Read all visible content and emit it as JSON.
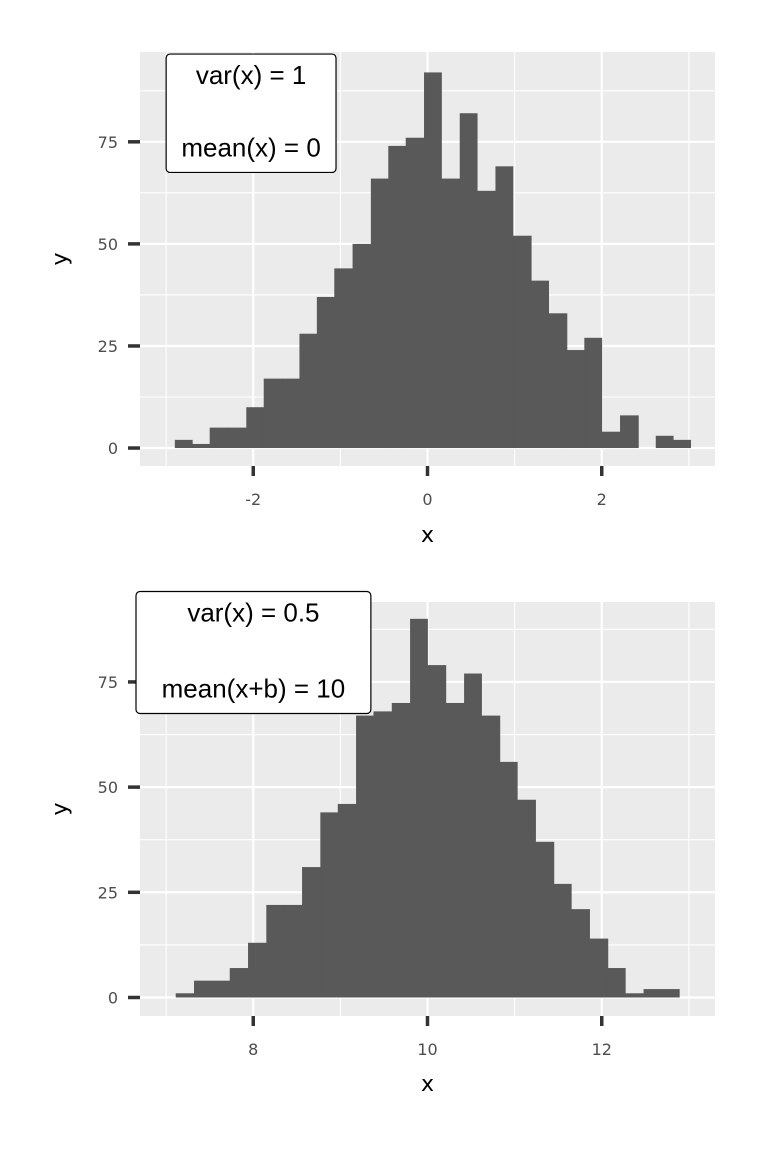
{
  "chart_data": [
    {
      "type": "bar",
      "subtype": "histogram",
      "xlabel": "x",
      "ylabel": "y",
      "xlim": [
        -3.3,
        3.3
      ],
      "ylim": [
        -4.4,
        97
      ],
      "xticks": [
        -2,
        0,
        2
      ],
      "yticks": [
        0,
        25,
        50,
        75
      ],
      "bar_color": "#595959",
      "panel_bg": "#ebebeb",
      "bins": [
        {
          "x0": -2.9,
          "x1": -2.7,
          "y": 2
        },
        {
          "x0": -2.7,
          "x1": -2.5,
          "y": 1
        },
        {
          "x0": -2.5,
          "x1": -2.29,
          "y": 5
        },
        {
          "x0": -2.29,
          "x1": -2.08,
          "y": 5
        },
        {
          "x0": -2.08,
          "x1": -1.88,
          "y": 10
        },
        {
          "x0": -1.88,
          "x1": -1.67,
          "y": 17
        },
        {
          "x0": -1.67,
          "x1": -1.47,
          "y": 17
        },
        {
          "x0": -1.47,
          "x1": -1.27,
          "y": 28
        },
        {
          "x0": -1.27,
          "x1": -1.07,
          "y": 37
        },
        {
          "x0": -1.07,
          "x1": -0.86,
          "y": 44
        },
        {
          "x0": -0.86,
          "x1": -0.65,
          "y": 50
        },
        {
          "x0": -0.65,
          "x1": -0.45,
          "y": 66
        },
        {
          "x0": -0.45,
          "x1": -0.25,
          "y": 74
        },
        {
          "x0": -0.25,
          "x1": -0.04,
          "y": 76
        },
        {
          "x0": -0.04,
          "x1": 0.16,
          "y": 92
        },
        {
          "x0": 0.16,
          "x1": 0.37,
          "y": 66
        },
        {
          "x0": 0.37,
          "x1": 0.57,
          "y": 82
        },
        {
          "x0": 0.57,
          "x1": 0.78,
          "y": 63
        },
        {
          "x0": 0.78,
          "x1": 0.98,
          "y": 69
        },
        {
          "x0": 0.98,
          "x1": 1.19,
          "y": 52
        },
        {
          "x0": 1.19,
          "x1": 1.39,
          "y": 41
        },
        {
          "x0": 1.39,
          "x1": 1.6,
          "y": 33
        },
        {
          "x0": 1.6,
          "x1": 1.8,
          "y": 24
        },
        {
          "x0": 1.8,
          "x1": 2.0,
          "y": 27
        },
        {
          "x0": 2.0,
          "x1": 2.21,
          "y": 4
        },
        {
          "x0": 2.21,
          "x1": 2.42,
          "y": 8
        },
        {
          "x0": 2.42,
          "x1": 2.62,
          "y": 0
        },
        {
          "x0": 2.62,
          "x1": 2.82,
          "y": 3
        },
        {
          "x0": 2.82,
          "x1": 3.02,
          "y": 2
        }
      ],
      "annotation": {
        "lines": [
          "var(x) = 1",
          "mean(x) = 0"
        ],
        "x0": -3.0,
        "x1": -1.05,
        "y0": 67.5,
        "y1": 96.5
      }
    },
    {
      "type": "bar",
      "subtype": "histogram",
      "xlabel": "x",
      "ylabel": "y",
      "xlim": [
        6.7,
        13.3
      ],
      "ylim": [
        -4.4,
        94
      ],
      "xticks": [
        8,
        10,
        12
      ],
      "yticks": [
        0,
        25,
        50,
        75
      ],
      "bar_color": "#595959",
      "panel_bg": "#ebebeb",
      "bins": [
        {
          "x0": 7.11,
          "x1": 7.32,
          "y": 1
        },
        {
          "x0": 7.32,
          "x1": 7.53,
          "y": 4
        },
        {
          "x0": 7.53,
          "x1": 7.73,
          "y": 4
        },
        {
          "x0": 7.73,
          "x1": 7.94,
          "y": 7
        },
        {
          "x0": 7.94,
          "x1": 8.15,
          "y": 13
        },
        {
          "x0": 8.15,
          "x1": 8.35,
          "y": 22
        },
        {
          "x0": 8.35,
          "x1": 8.56,
          "y": 22
        },
        {
          "x0": 8.56,
          "x1": 8.77,
          "y": 31
        },
        {
          "x0": 8.77,
          "x1": 8.97,
          "y": 44
        },
        {
          "x0": 8.97,
          "x1": 9.18,
          "y": 46
        },
        {
          "x0": 9.18,
          "x1": 9.38,
          "y": 67
        },
        {
          "x0": 9.38,
          "x1": 9.59,
          "y": 68
        },
        {
          "x0": 9.59,
          "x1": 9.8,
          "y": 70
        },
        {
          "x0": 9.8,
          "x1": 10.0,
          "y": 90
        },
        {
          "x0": 10.0,
          "x1": 10.21,
          "y": 79
        },
        {
          "x0": 10.21,
          "x1": 10.42,
          "y": 70
        },
        {
          "x0": 10.42,
          "x1": 10.62,
          "y": 77
        },
        {
          "x0": 10.62,
          "x1": 10.83,
          "y": 67
        },
        {
          "x0": 10.83,
          "x1": 11.03,
          "y": 56
        },
        {
          "x0": 11.03,
          "x1": 11.24,
          "y": 47
        },
        {
          "x0": 11.24,
          "x1": 11.45,
          "y": 37
        },
        {
          "x0": 11.45,
          "x1": 11.65,
          "y": 27
        },
        {
          "x0": 11.65,
          "x1": 11.86,
          "y": 21
        },
        {
          "x0": 11.86,
          "x1": 12.07,
          "y": 14
        },
        {
          "x0": 12.07,
          "x1": 12.27,
          "y": 7
        },
        {
          "x0": 12.27,
          "x1": 12.48,
          "y": 1
        },
        {
          "x0": 12.48,
          "x1": 12.68,
          "y": 2
        },
        {
          "x0": 12.68,
          "x1": 12.89,
          "y": 2
        }
      ],
      "annotation": {
        "lines": [
          "var(x) = 0.5",
          "mean(x+b) = 10"
        ],
        "x0": 6.7,
        "x1": 9.35,
        "y0": 67.5,
        "y1": 96.5
      }
    }
  ]
}
